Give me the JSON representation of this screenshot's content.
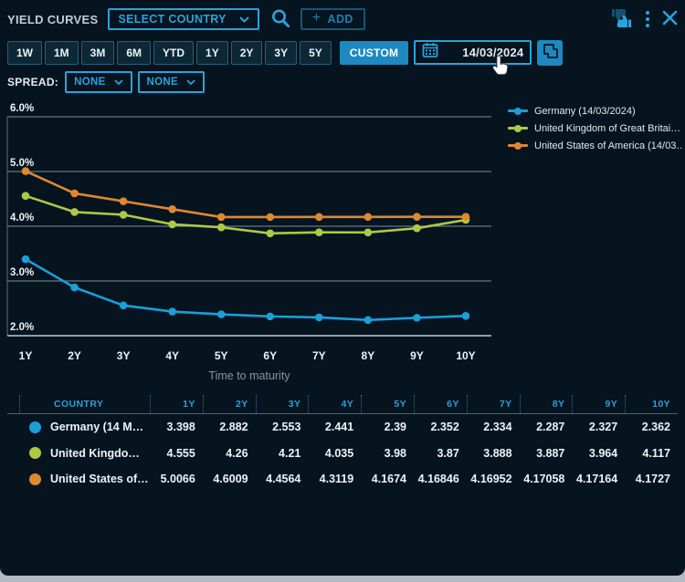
{
  "header": {
    "title": "YIELD CURVES",
    "country_select_label": "SELECT COUNTRY",
    "add_label": "ADD"
  },
  "toolbar": {
    "periods": [
      "1W",
      "1M",
      "3M",
      "6M",
      "YTD",
      "1Y",
      "2Y",
      "3Y",
      "5Y"
    ],
    "custom_label": "CUSTOM",
    "date_value": "14/03/2024"
  },
  "spread": {
    "label": "SPREAD:",
    "selects": [
      "NONE",
      "NONE"
    ]
  },
  "chart_data": {
    "type": "line",
    "x_labels": [
      "1Y",
      "2Y",
      "3Y",
      "4Y",
      "5Y",
      "6Y",
      "7Y",
      "8Y",
      "9Y",
      "10Y"
    ],
    "xlabel": "Time to maturity",
    "ylim": [
      2.0,
      6.0
    ],
    "yticks": [
      "2.0%",
      "3.0%",
      "4.0%",
      "5.0%",
      "6.0%"
    ],
    "grid": "horizontal",
    "legend_position": "top-right",
    "series": [
      {
        "name": "Germany (14/03/2024)",
        "color": "#1c9fd8",
        "values": [
          3.398,
          2.882,
          2.553,
          2.441,
          2.39,
          2.352,
          2.334,
          2.287,
          2.327,
          2.362
        ]
      },
      {
        "name": "United Kingdom of Great Britai…",
        "color": "#b0c944",
        "values": [
          4.555,
          4.26,
          4.21,
          4.035,
          3.98,
          3.87,
          3.888,
          3.887,
          3.964,
          4.117
        ]
      },
      {
        "name": "United States of America (14/03…",
        "color": "#e0882f",
        "values": [
          5.0066,
          4.6009,
          4.4564,
          4.3119,
          4.1674,
          4.16846,
          4.16952,
          4.17058,
          4.17164,
          4.1727
        ]
      }
    ]
  },
  "table": {
    "columns": [
      "COUNTRY",
      "1Y",
      "2Y",
      "3Y",
      "4Y",
      "5Y",
      "6Y",
      "7Y",
      "8Y",
      "9Y",
      "10Y"
    ],
    "rows": [
      {
        "name": "Germany (14 M…",
        "color": "#1c9fd8",
        "values": [
          "3.398",
          "2.882",
          "2.553",
          "2.441",
          "2.39",
          "2.352",
          "2.334",
          "2.287",
          "2.327",
          "2.362"
        ]
      },
      {
        "name": "United Kingdo…",
        "color": "#b0c944",
        "values": [
          "4.555",
          "4.26",
          "4.21",
          "4.035",
          "3.98",
          "3.87",
          "3.888",
          "3.887",
          "3.964",
          "4.117"
        ]
      },
      {
        "name": "United States of…",
        "color": "#e0882f",
        "values": [
          "5.0066",
          "4.6009",
          "4.4564",
          "4.3119",
          "4.1674",
          "4.16846",
          "4.16952",
          "4.17058",
          "4.17164",
          "4.1727"
        ]
      }
    ]
  },
  "icons": {
    "search": "magnifier-glyph",
    "add": "plus-glyph",
    "feedback": "thumbs-up-down-glyph",
    "menu": "kebab-three-dots",
    "close": "x-glyph",
    "calendar": "calendar-grid-glyph",
    "copy": "overlapping-pages-glyph",
    "cursor": "hand-pointer"
  },
  "colors": {
    "accent": "#2ba3dc",
    "accent_dim": "#1f7fad",
    "filled_button": "#1e88c0",
    "panel_bg": "#05141f",
    "grid_line": "#aab6bf",
    "text": "#eef3f7",
    "muted_text": "#8a959e",
    "table_header": "#2da0d8",
    "frame_gray": "#b4bac1"
  }
}
